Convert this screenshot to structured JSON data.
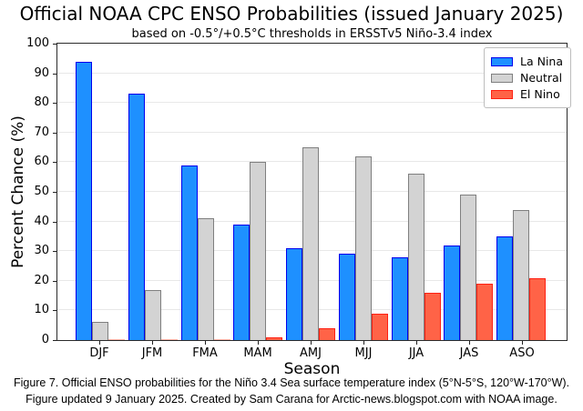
{
  "figure": {
    "title": "Official NOAA CPC ENSO Probabilities (issued January 2025)",
    "caption_line1": "Figure 7. Official ENSO probabilities for the Niño 3.4 Sea surface temperature index (5°N-5°S, 120°W-170°W).",
    "caption_line2": "Figure updated 9 January 2025. Created by Sam Carana for Arctic-news.blogspot.com with NOAA image."
  },
  "chart_data": {
    "type": "bar",
    "title": "based on -0.5°/+0.5°C thresholds in ERSSTv5 Niño-3.4 index",
    "xlabel": "Season",
    "ylabel": "Percent Chance (%)",
    "categories": [
      "DJF",
      "JFM",
      "FMA",
      "MAM",
      "AMJ",
      "MJJ",
      "JJA",
      "JAS",
      "ASO"
    ],
    "series": [
      {
        "name": "La Nina",
        "fill": "#1e90ff",
        "edge": "#0000ee",
        "values": [
          94,
          83,
          59,
          39,
          31,
          29,
          28,
          32,
          35
        ]
      },
      {
        "name": "Neutral",
        "fill": "#d3d3d3",
        "edge": "#7f7f7f",
        "values": [
          6,
          17,
          41,
          60,
          65,
          62,
          56,
          49,
          44
        ]
      },
      {
        "name": "El Nino",
        "fill": "#ff6347",
        "edge": "#ff2013",
        "values": [
          0,
          0,
          0,
          1,
          4,
          9,
          16,
          19,
          21
        ]
      }
    ],
    "ylim": [
      0,
      100
    ],
    "ytick_step": 10,
    "ytick_labels": [
      "0",
      "10",
      "20",
      "30",
      "40",
      "50",
      "60",
      "70",
      "80",
      "90",
      "100"
    ],
    "grid": true,
    "legend_position": "upper right",
    "zero_bar_color": "#ffb3a7",
    "frame_color": "#2b2b2b",
    "grid_color": "#e8e8e8"
  }
}
